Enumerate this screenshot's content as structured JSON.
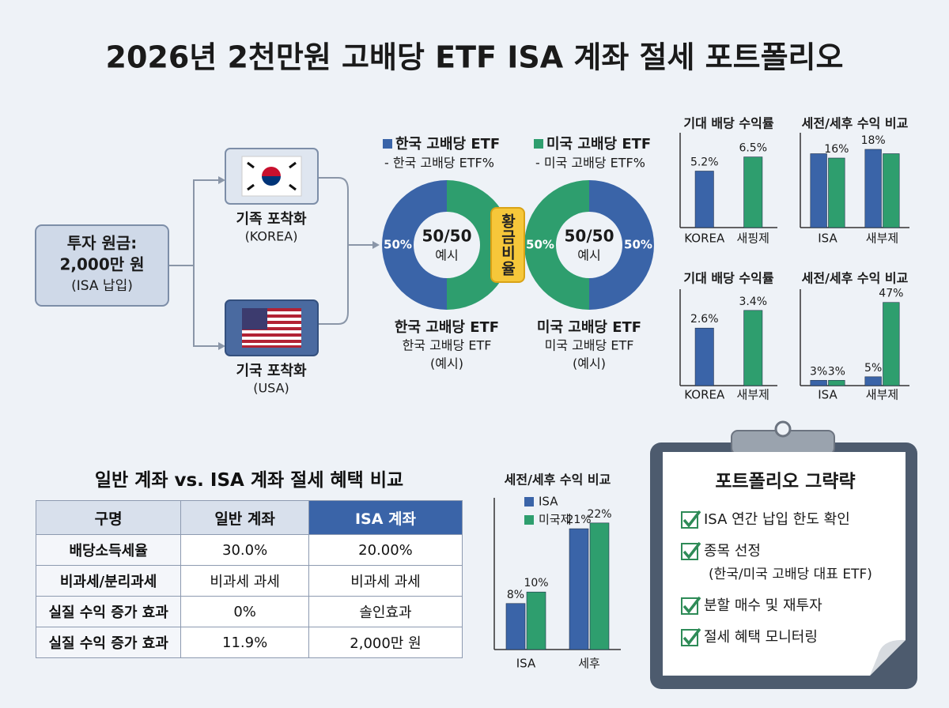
{
  "title": "2026년 2천만원 고배당 ETF ISA 계좌 절세 포트폴리오",
  "flow": {
    "source": [
      "투자 원금:",
      "2,000만 원",
      "(ISA 납입)"
    ],
    "korea": [
      "기족 포착화",
      "(KOREA)"
    ],
    "usa": [
      "기국 포착화",
      "(USA)"
    ]
  },
  "etf_legend": [
    {
      "name": "한국 고배당 ETF",
      "note": "- 한국 고배당 ETF%",
      "color": "#3a64a8"
    },
    {
      "name": "미국 고배당 ETF",
      "note": "- 미국 고배당 ETF%",
      "color": "#2e9e6e"
    }
  ],
  "badge": "황금비율",
  "chart_data": [
    {
      "type": "pie",
      "values": [
        50,
        50
      ],
      "value_labels": [
        "50%",
        null
      ],
      "colors": [
        "#3a64a8",
        "#2e9e6e"
      ],
      "center_label": "50/50",
      "center_note": "예시",
      "caption": [
        "한국 고배당 ETF",
        "한국 고배당 ETF",
        "(예시)"
      ]
    },
    {
      "type": "pie",
      "values": [
        50,
        50
      ],
      "value_labels": [
        "50%",
        "50%"
      ],
      "colors": [
        "#2e9e6e",
        "#3a64a8"
      ],
      "center_label": "50/50",
      "center_note": "예시",
      "caption": [
        "미국 고배당 ETF",
        "미국 고배당 ETF",
        "(예시)"
      ]
    },
    {
      "type": "bar",
      "title": "기대 배당 수익률",
      "categories": [
        "KOREA",
        "새핑제"
      ],
      "values": [
        5.2,
        6.5
      ],
      "value_labels": [
        "5.2%",
        "6.5%"
      ],
      "colors": [
        "#3a64a8",
        "#2e9e6e"
      ],
      "ylim": [
        0,
        8
      ]
    },
    {
      "type": "bar",
      "title": "세전/세후 수익 비교",
      "categories": [
        "ISA",
        "새부제"
      ],
      "ylim": [
        0,
        20
      ],
      "series": [
        {
          "color": "#3a64a8",
          "values": [
            17,
            18
          ],
          "value_labels": [
            null,
            "18%"
          ]
        },
        {
          "color": "#2e9e6e",
          "values": [
            16,
            17
          ],
          "value_labels": [
            "16%",
            null
          ]
        }
      ]
    },
    {
      "type": "bar",
      "title": "기대 배당 수익률",
      "categories": [
        "KOREA",
        "새부제"
      ],
      "values": [
        2.6,
        3.4
      ],
      "value_labels": [
        "2.6%",
        "3.4%"
      ],
      "colors": [
        "#3a64a8",
        "#2e9e6e"
      ],
      "ylim": [
        0,
        4
      ]
    },
    {
      "type": "bar",
      "title": "세전/세후 수익 비교",
      "categories": [
        "ISA",
        "새부제"
      ],
      "ylim": [
        0,
        50
      ],
      "series": [
        {
          "color": "#3a64a8",
          "values": [
            3,
            5
          ],
          "value_labels": [
            "3%",
            "5%"
          ]
        },
        {
          "color": "#2e9e6e",
          "values": [
            3,
            47
          ],
          "value_labels": [
            "3%",
            "47%"
          ]
        }
      ]
    },
    {
      "type": "bar",
      "title": "세전/세후 수익 비교",
      "categories": [
        "ISA",
        "세후"
      ],
      "ylim": [
        0,
        25
      ],
      "series": [
        {
          "name": "ISA",
          "color": "#3a64a8",
          "values": [
            8,
            21
          ],
          "value_labels": [
            "8%",
            "21%"
          ]
        },
        {
          "name": "미국제",
          "color": "#2e9e6e",
          "values": [
            10,
            22
          ],
          "value_labels": [
            "10%",
            "22%"
          ]
        }
      ]
    }
  ],
  "table": {
    "title": "일반 계좌 vs. ISA 계좌 절세 혜택 비교",
    "header": [
      "구명",
      "일반 계좌",
      "ISA 계좌"
    ],
    "rows": [
      [
        "배당소득세율",
        "30.0%",
        "20.00%"
      ],
      [
        "비과세/분리과세",
        "비과세 과세",
        "비과세 과세"
      ],
      [
        "실질 수익 증가 효과",
        "0%",
        "솔인효과"
      ],
      [
        "실질 수익 증가 효과",
        "11.9%",
        "2,000만 원"
      ]
    ]
  },
  "checklist": {
    "title": "포트폴리오 그략략",
    "items": [
      {
        "text": "ISA 연간 납입 한도 확인"
      },
      {
        "text": "종목 선정",
        "note": "(한국/미국 고배당 대표 ETF)"
      },
      {
        "text": "분할 매수 및 재투자"
      },
      {
        "text": "절세 혜택 모니터링"
      }
    ]
  }
}
